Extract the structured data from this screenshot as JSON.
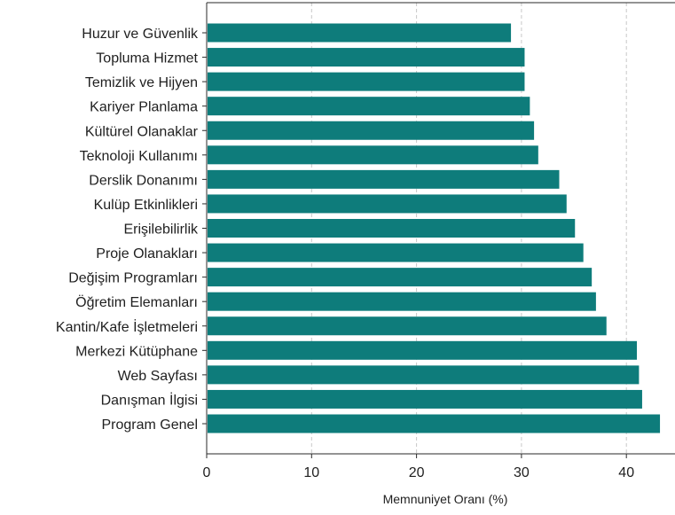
{
  "chart_data": {
    "type": "bar",
    "orientation": "horizontal",
    "categories": [
      "Huzur ve Güvenlik",
      "Topluma Hizmet",
      "Temizlik ve Hijyen",
      "Kariyer Planlama",
      "Kültürel Olanaklar",
      "Teknoloji Kullanımı",
      "Derslik Donanımı",
      "Kulüp Etkinlikleri",
      "Erişilebilirlik",
      "Proje Olanakları",
      "Değişim Programları",
      "Öğretim Elemanları",
      "Kantin/Kafe İşletmeleri",
      "Merkezi Kütüphane",
      "Web Sayfası",
      "Danışman İlgisi",
      "Program Genel"
    ],
    "values": [
      29.0,
      30.3,
      30.3,
      30.8,
      31.2,
      31.6,
      33.6,
      34.3,
      35.1,
      35.9,
      36.7,
      37.1,
      38.1,
      41.0,
      41.2,
      41.5,
      43.2
    ],
    "title": "",
    "xlabel": "Memnuniyet Oranı (%)",
    "ylabel": "",
    "xlim": [
      0,
      44
    ],
    "xticks": [
      0,
      10,
      20,
      30,
      40
    ],
    "grid": "x-dashed",
    "bar_color": "#0e7c7b"
  }
}
